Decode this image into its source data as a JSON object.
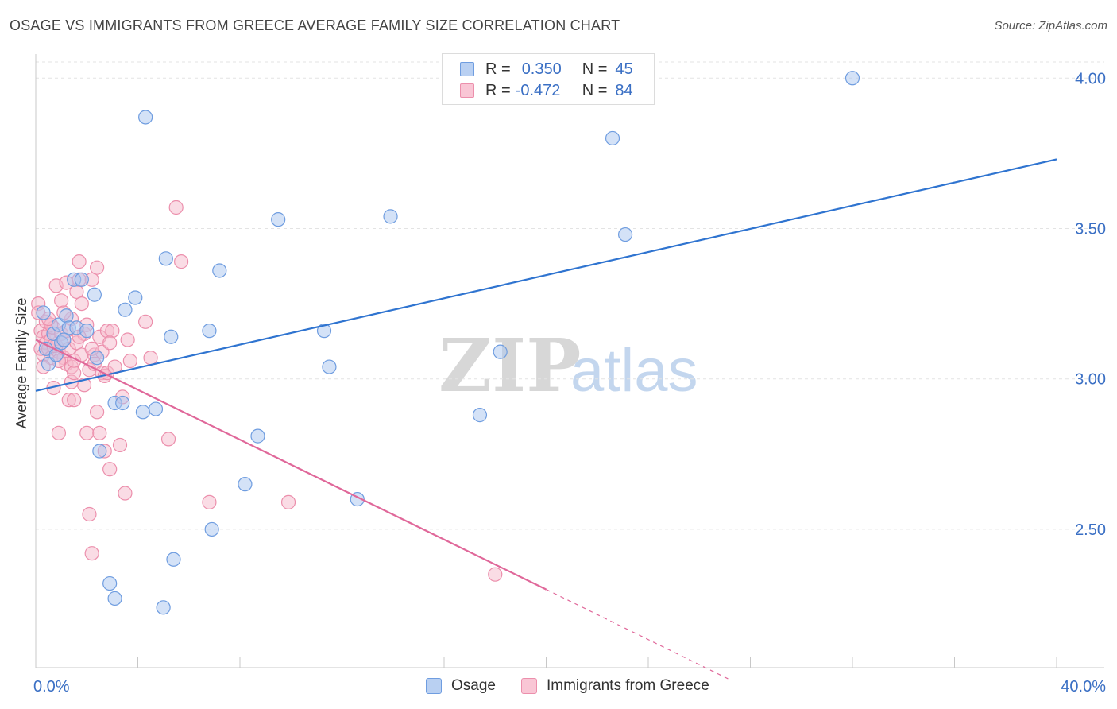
{
  "header": {
    "title": "OSAGE VS IMMIGRANTS FROM GREECE AVERAGE FAMILY SIZE CORRELATION CHART",
    "source": "Source: ZipAtlas.com"
  },
  "legend_top": {
    "rows": [
      {
        "r_label": "R =",
        "r_value": "0.350",
        "n_label": "N =",
        "n_value": "45"
      },
      {
        "r_label": "R =",
        "r_value": "-0.472",
        "n_label": "N =",
        "n_value": "84"
      }
    ]
  },
  "legend_bottom": {
    "items": [
      {
        "label": "Osage"
      },
      {
        "label": "Immigrants from Greece"
      }
    ]
  },
  "watermark": {
    "zip": "ZIP",
    "atlas": "atlas"
  },
  "colors": {
    "blue_fill": "#a9c6f0",
    "blue_stroke": "#6f9de0",
    "blue_line": "#2f74d0",
    "pink_fill": "#f6b9cc",
    "pink_stroke": "#ec8fac",
    "pink_line": "#e0689a",
    "tick_label": "#3a6fc4",
    "grid": "#e3e3e3"
  },
  "chart_data": {
    "type": "scatter",
    "title": "OSAGE VS IMMIGRANTS FROM GREECE AVERAGE FAMILY SIZE CORRELATION CHART",
    "xlabel": "",
    "ylabel": "Average Family Size",
    "xlim": [
      0.0,
      40.0
    ],
    "ylim": [
      2.04,
      4.08
    ],
    "x_tick_labels": [
      {
        "value": 0.0,
        "label": "0.0%"
      },
      {
        "value": 40.0,
        "label": "40.0%"
      }
    ],
    "y_ticks": [
      {
        "value": 2.5,
        "label": "2.50"
      },
      {
        "value": 3.0,
        "label": "3.00"
      },
      {
        "value": 3.5,
        "label": "3.50"
      },
      {
        "value": 4.0,
        "label": "4.00"
      }
    ],
    "x_minor_ticks": [
      0,
      4,
      8,
      12,
      16,
      20,
      24,
      28,
      32,
      36,
      40
    ],
    "grid": true,
    "legend_position": "top-center",
    "series": [
      {
        "name": "Osage",
        "color": "#a9c6f0",
        "r": 0.35,
        "n": 45,
        "trend": {
          "x": [
            0.0,
            40.0
          ],
          "y": [
            2.96,
            3.73
          ]
        },
        "points": [
          [
            0.3,
            3.22
          ],
          [
            0.5,
            3.05
          ],
          [
            0.7,
            3.15
          ],
          [
            0.9,
            3.18
          ],
          [
            1.0,
            3.12
          ],
          [
            1.2,
            3.21
          ],
          [
            1.3,
            3.17
          ],
          [
            1.5,
            3.33
          ],
          [
            1.8,
            3.33
          ],
          [
            2.3,
            3.28
          ],
          [
            2.4,
            3.07
          ],
          [
            2.5,
            2.76
          ],
          [
            2.9,
            2.32
          ],
          [
            3.1,
            2.27
          ],
          [
            3.1,
            2.92
          ],
          [
            3.4,
            2.92
          ],
          [
            3.5,
            3.23
          ],
          [
            3.9,
            3.27
          ],
          [
            4.2,
            2.89
          ],
          [
            4.3,
            3.87
          ],
          [
            4.7,
            2.9
          ],
          [
            5.0,
            2.24
          ],
          [
            5.1,
            3.4
          ],
          [
            5.3,
            3.14
          ],
          [
            5.4,
            2.4
          ],
          [
            6.8,
            3.16
          ],
          [
            6.9,
            2.5
          ],
          [
            7.2,
            3.36
          ],
          [
            8.2,
            2.65
          ],
          [
            8.7,
            2.81
          ],
          [
            9.5,
            3.53
          ],
          [
            11.3,
            3.16
          ],
          [
            11.5,
            3.04
          ],
          [
            12.6,
            2.6
          ],
          [
            13.9,
            3.54
          ],
          [
            17.4,
            2.88
          ],
          [
            18.2,
            3.09
          ],
          [
            22.6,
            3.8
          ],
          [
            23.1,
            3.48
          ],
          [
            32.0,
            4.0
          ],
          [
            0.4,
            3.1
          ],
          [
            1.6,
            3.17
          ],
          [
            2.0,
            3.16
          ],
          [
            0.8,
            3.08
          ],
          [
            1.1,
            3.13
          ]
        ]
      },
      {
        "name": "Immigrants from Greece",
        "color": "#f6b9cc",
        "r": -0.472,
        "n": 84,
        "trend": {
          "x": [
            0.0,
            20.0
          ],
          "y": [
            3.13,
            2.3
          ]
        },
        "trend_dashed": {
          "x": [
            20.0,
            27.2
          ],
          "y": [
            2.3,
            2.0
          ]
        },
        "points": [
          [
            0.1,
            3.25
          ],
          [
            0.1,
            3.22
          ],
          [
            0.2,
            3.16
          ],
          [
            0.2,
            3.1
          ],
          [
            0.3,
            3.14
          ],
          [
            0.3,
            3.08
          ],
          [
            0.4,
            3.19
          ],
          [
            0.4,
            3.12
          ],
          [
            0.5,
            3.15
          ],
          [
            0.5,
            3.1
          ],
          [
            0.6,
            3.13
          ],
          [
            0.6,
            3.07
          ],
          [
            0.7,
            3.17
          ],
          [
            0.7,
            2.97
          ],
          [
            0.8,
            3.11
          ],
          [
            0.8,
            3.31
          ],
          [
            0.9,
            2.82
          ],
          [
            0.9,
            3.09
          ],
          [
            1.0,
            3.26
          ],
          [
            1.0,
            3.15
          ],
          [
            1.1,
            3.07
          ],
          [
            1.1,
            3.13
          ],
          [
            1.2,
            3.05
          ],
          [
            1.2,
            3.16
          ],
          [
            1.3,
            2.93
          ],
          [
            1.3,
            3.1
          ],
          [
            1.4,
            3.04
          ],
          [
            1.4,
            3.2
          ],
          [
            1.5,
            3.06
          ],
          [
            1.5,
            2.93
          ],
          [
            1.6,
            3.29
          ],
          [
            1.6,
            3.12
          ],
          [
            1.7,
            3.33
          ],
          [
            1.7,
            3.39
          ],
          [
            1.8,
            3.25
          ],
          [
            1.8,
            3.08
          ],
          [
            1.9,
            3.15
          ],
          [
            1.9,
            2.98
          ],
          [
            2.0,
            3.18
          ],
          [
            2.0,
            2.82
          ],
          [
            2.1,
            3.03
          ],
          [
            2.1,
            2.55
          ],
          [
            2.2,
            3.33
          ],
          [
            2.2,
            2.42
          ],
          [
            2.3,
            3.08
          ],
          [
            2.3,
            3.05
          ],
          [
            2.4,
            3.37
          ],
          [
            2.4,
            2.89
          ],
          [
            2.5,
            3.14
          ],
          [
            2.5,
            2.82
          ],
          [
            2.6,
            3.02
          ],
          [
            2.6,
            3.09
          ],
          [
            2.7,
            3.01
          ],
          [
            2.7,
            2.76
          ],
          [
            2.8,
            3.02
          ],
          [
            2.8,
            3.16
          ],
          [
            2.9,
            2.7
          ],
          [
            3.0,
            3.16
          ],
          [
            3.1,
            3.04
          ],
          [
            3.3,
            2.78
          ],
          [
            3.4,
            2.94
          ],
          [
            3.5,
            2.62
          ],
          [
            3.6,
            3.13
          ],
          [
            3.7,
            3.06
          ],
          [
            4.3,
            3.19
          ],
          [
            4.5,
            3.07
          ],
          [
            5.2,
            2.8
          ],
          [
            5.5,
            3.57
          ],
          [
            5.7,
            3.39
          ],
          [
            6.8,
            2.59
          ],
          [
            9.9,
            2.59
          ],
          [
            18.0,
            2.35
          ],
          [
            0.6,
            3.18
          ],
          [
            1.2,
            3.32
          ],
          [
            0.9,
            3.06
          ],
          [
            1.4,
            2.99
          ],
          [
            2.2,
            3.1
          ],
          [
            0.3,
            3.04
          ],
          [
            1.1,
            3.22
          ],
          [
            0.5,
            3.2
          ],
          [
            2.9,
            3.12
          ],
          [
            1.7,
            3.14
          ],
          [
            0.7,
            3.11
          ],
          [
            1.5,
            3.02
          ]
        ]
      }
    ]
  }
}
